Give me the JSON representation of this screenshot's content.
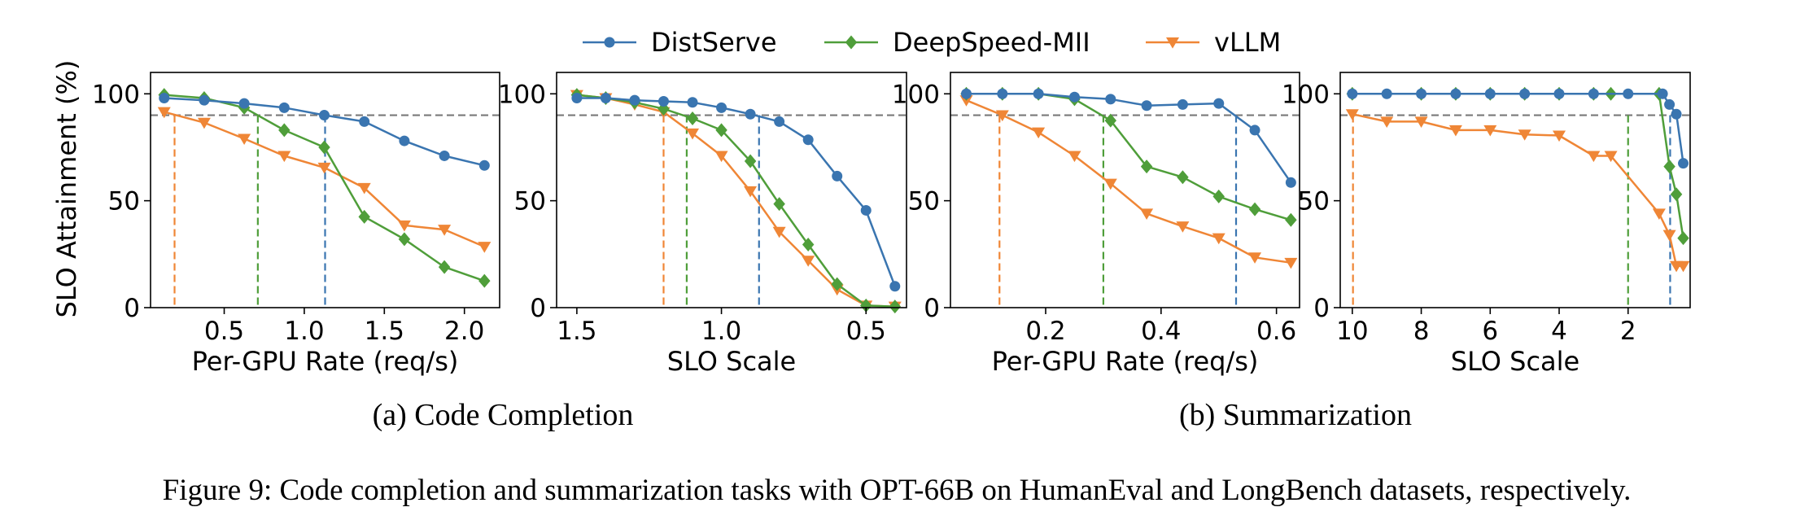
{
  "legend": {
    "placement": "top-center",
    "entries": [
      {
        "label": "DistServe",
        "color": "#3a75b0",
        "marker": "circle"
      },
      {
        "label": "DeepSpeed-MII",
        "color": "#4f9e3a",
        "marker": "diamond"
      },
      {
        "label": "vLLM",
        "color": "#ef8636",
        "marker": "triangle-down"
      }
    ]
  },
  "shared_ylabel": "SLO Attainment (%)",
  "subcaptions": [
    "(a) Code Completion",
    "(b) Summarization"
  ],
  "figure_caption": "Figure 9: Code completion and summarization tasks with OPT-66B on HumanEval and LongBench datasets, respectively.",
  "chart_data": [
    {
      "type": "line",
      "xlabel": "Per-GPU Rate (req/s)",
      "ylabel": "SLO Attainment (%)",
      "xlim": [
        0.04,
        2.22
      ],
      "ylim": [
        0,
        110
      ],
      "x_reversed": false,
      "xticks": [
        0.5,
        1.0,
        1.5,
        2.0
      ],
      "xtick_labels": [
        "0.5",
        "1.0",
        "1.5",
        "2.0"
      ],
      "yticks": [
        0,
        50,
        100
      ],
      "ytick_labels": [
        "0",
        "50",
        "100"
      ],
      "target_line": 90,
      "series": [
        {
          "name": "DistServe",
          "x": [
            0.125,
            0.375,
            0.625,
            0.875,
            1.125,
            1.375,
            1.625,
            1.875,
            2.125
          ],
          "y": [
            98,
            97,
            95.5,
            93.5,
            90,
            87,
            78,
            71,
            66.5
          ],
          "cutoff": 1.13
        },
        {
          "name": "DeepSpeed-MII",
          "x": [
            0.125,
            0.375,
            0.625,
            0.875,
            1.125,
            1.375,
            1.625,
            1.875,
            2.125
          ],
          "y": [
            99.5,
            98,
            93.5,
            83,
            75,
            42.5,
            32,
            19,
            12.5
          ],
          "cutoff": 0.71
        },
        {
          "name": "vLLM",
          "x": [
            0.125,
            0.375,
            0.625,
            0.875,
            1.125,
            1.375,
            1.625,
            1.875,
            2.125
          ],
          "y": [
            91.5,
            86.5,
            79,
            71,
            65.5,
            56,
            38.5,
            36.5,
            28.5
          ],
          "cutoff": 0.19
        }
      ]
    },
    {
      "type": "line",
      "xlabel": "SLO Scale",
      "ylabel": "",
      "xlim": [
        1.57,
        0.36
      ],
      "ylim": [
        0,
        110
      ],
      "x_reversed": true,
      "xticks": [
        1.5,
        1.0,
        0.5
      ],
      "xtick_labels": [
        "1.5",
        "1.0",
        "0.5"
      ],
      "yticks": [
        0,
        50,
        100
      ],
      "ytick_labels": [
        "0",
        "50",
        "100"
      ],
      "target_line": 90,
      "series": [
        {
          "name": "DistServe",
          "x": [
            1.5,
            1.4,
            1.3,
            1.2,
            1.1,
            1.0,
            0.9,
            0.8,
            0.7,
            0.6,
            0.5,
            0.4
          ],
          "y": [
            98,
            98,
            97,
            96.5,
            96,
            93.5,
            90.5,
            87,
            78.5,
            61.5,
            45.5,
            10
          ],
          "cutoff": 0.87
        },
        {
          "name": "DeepSpeed-MII",
          "x": [
            1.5,
            1.4,
            1.3,
            1.2,
            1.1,
            1.0,
            0.9,
            0.8,
            0.7,
            0.6,
            0.5,
            0.4
          ],
          "y": [
            99.5,
            98,
            96,
            93,
            88.5,
            83,
            68.5,
            48.5,
            29.5,
            11,
            1,
            0.5
          ],
          "cutoff": 1.12
        },
        {
          "name": "vLLM",
          "x": [
            1.5,
            1.4,
            1.3,
            1.2,
            1.1,
            1.0,
            0.9,
            0.8,
            0.7,
            0.6,
            0.5,
            0.4
          ],
          "y": [
            99.5,
            98,
            95,
            91.5,
            81.5,
            71,
            54.5,
            35.5,
            22,
            8.5,
            1,
            0.5
          ],
          "cutoff": 1.2
        }
      ]
    },
    {
      "type": "line",
      "xlabel": "Per-GPU Rate (req/s)",
      "ylabel": "",
      "xlim": [
        0.035,
        0.64
      ],
      "ylim": [
        0,
        110
      ],
      "x_reversed": false,
      "xticks": [
        0.2,
        0.4,
        0.6
      ],
      "xtick_labels": [
        "0.2",
        "0.4",
        "0.6"
      ],
      "yticks": [
        0,
        50,
        100
      ],
      "ytick_labels": [
        "0",
        "50",
        "100"
      ],
      "target_line": 90,
      "series": [
        {
          "name": "DistServe",
          "x": [
            0.0625,
            0.125,
            0.1875,
            0.25,
            0.3125,
            0.375,
            0.4375,
            0.5,
            0.5625,
            0.625
          ],
          "y": [
            100,
            100,
            100,
            98.5,
            97.5,
            94.5,
            95,
            95.5,
            83,
            58.5
          ],
          "cutoff": 0.53
        },
        {
          "name": "DeepSpeed-MII",
          "x": [
            0.0625,
            0.125,
            0.1875,
            0.25,
            0.3125,
            0.375,
            0.4375,
            0.5,
            0.5625,
            0.625
          ],
          "y": [
            100,
            100,
            100,
            97.5,
            87.5,
            66,
            61,
            52,
            46,
            41
          ],
          "cutoff": 0.3
        },
        {
          "name": "vLLM",
          "x": [
            0.0625,
            0.125,
            0.1875,
            0.25,
            0.3125,
            0.375,
            0.4375,
            0.5,
            0.5625,
            0.625
          ],
          "y": [
            97,
            90,
            82,
            71,
            58,
            44,
            38,
            32.5,
            23.5,
            21
          ],
          "cutoff": 0.12
        }
      ]
    },
    {
      "type": "line",
      "xlabel": "SLO Scale",
      "ylabel": "",
      "xlim": [
        10.35,
        0.2
      ],
      "ylim": [
        0,
        110
      ],
      "x_reversed": true,
      "xticks": [
        10,
        8,
        6,
        4,
        2
      ],
      "xtick_labels": [
        "10",
        "8",
        "6",
        "4",
        "2"
      ],
      "yticks": [
        0,
        50,
        100
      ],
      "ytick_labels": [
        "0",
        "50",
        "100"
      ],
      "target_line": 90,
      "series": [
        {
          "name": "DistServe",
          "x": [
            10,
            9,
            8,
            7,
            6,
            5,
            4,
            3,
            2,
            1,
            0.8,
            0.6,
            0.4
          ],
          "y": [
            100,
            100,
            100,
            100,
            100,
            100,
            100,
            100,
            100,
            100,
            95,
            90.5,
            67.5
          ],
          "cutoff": 0.78
        },
        {
          "name": "DeepSpeed-MII",
          "x": [
            10,
            8,
            7,
            6,
            5,
            4,
            3,
            2.5,
            1.1,
            0.8,
            0.6,
            0.4
          ],
          "y": [
            100,
            100,
            100,
            100,
            100,
            100,
            100,
            100,
            100,
            66,
            53,
            32.5
          ],
          "cutoff": 2.0
        },
        {
          "name": "vLLM",
          "x": [
            10,
            9,
            8,
            7,
            6,
            5,
            4,
            3,
            2.5,
            1.1,
            0.8,
            0.6,
            0.4
          ],
          "y": [
            90.5,
            87,
            87,
            83,
            83,
            81,
            80.5,
            71,
            71,
            44,
            34,
            19.5,
            19.5
          ],
          "cutoff": 9.98
        }
      ]
    }
  ]
}
